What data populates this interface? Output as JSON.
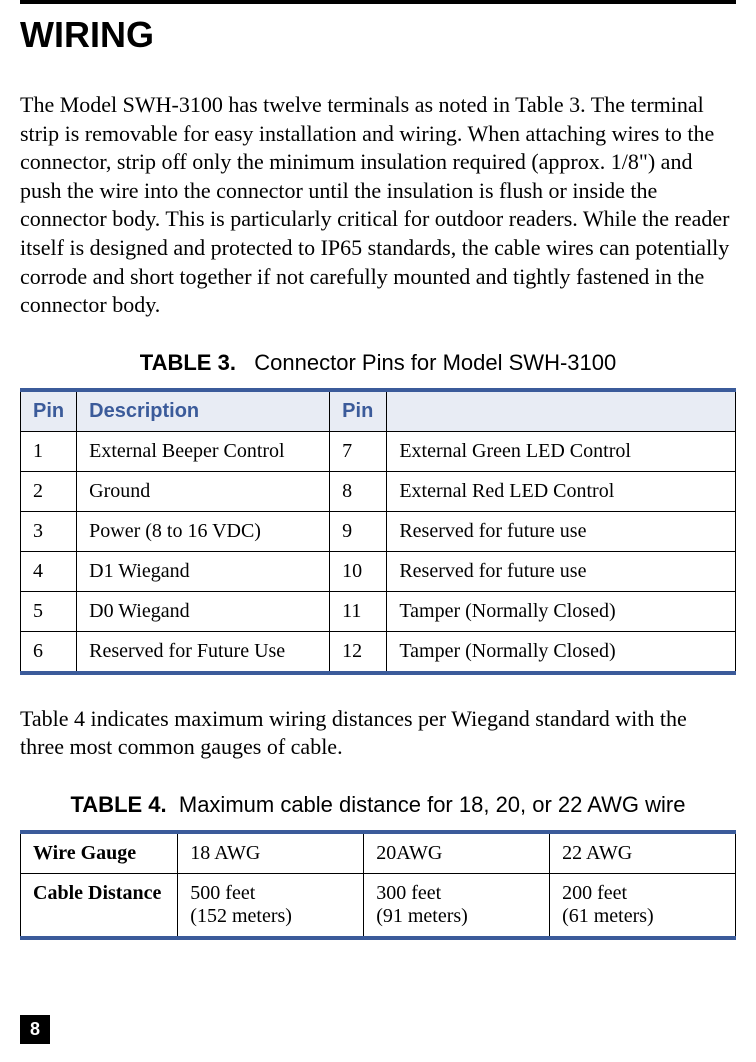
{
  "heading": "WIRING",
  "paragraph1": "The Model SWH-3100 has twelve terminals as noted in Table 3. The terminal strip is removable for easy installation and wiring. When attaching wires to the connector, strip off only the minimum insulation required (approx. 1/8\") and push the wire into the connector until the insulation is flush or inside the connector body. This is particularly critical for outdoor readers. While the reader itself is designed and protected to IP65 standards, the cable wires can potentially corrode and short together if not carefully mounted and tightly fastened in the connector body.",
  "table3": {
    "caption_bold": "TABLE 3.",
    "caption_text": "Connector Pins for Model SWH-3100",
    "headers": {
      "pin1": "Pin",
      "desc1": "Description",
      "pin2": "Pin",
      "desc2": ""
    },
    "rows": [
      {
        "pin1": "1",
        "desc1": "External Beeper Control",
        "pin2": "7",
        "desc2": "External Green LED Control"
      },
      {
        "pin1": "2",
        "desc1": "Ground",
        "pin2": "8",
        "desc2": "External Red LED Control"
      },
      {
        "pin1": "3",
        "desc1": "Power (8 to 16 VDC)",
        "pin2": "9",
        "desc2": "Reserved for future use"
      },
      {
        "pin1": "4",
        "desc1": "D1 Wiegand",
        "pin2": "10",
        "desc2": "Reserved for future use"
      },
      {
        "pin1": "5",
        "desc1": "D0 Wiegand",
        "pin2": "11",
        "desc2": "Tamper (Normally Closed)"
      },
      {
        "pin1": "6",
        "desc1": "Reserved for Future Use",
        "pin2": "12",
        "desc2": "Tamper (Normally Closed)"
      }
    ]
  },
  "paragraph2": "Table 4 indicates maximum wiring distances per Wiegand standard with the three most common gauges of cable.",
  "table4": {
    "caption_bold": "TABLE 4.",
    "caption_text": "Maximum cable distance for 18, 20, or 22 AWG wire",
    "row1": {
      "label": "Wire Gauge",
      "c1": "18 AWG",
      "c2": "20AWG",
      "c3": "22 AWG"
    },
    "row2": {
      "label": "Cable Distance",
      "c1a": "500 feet",
      "c1b": "(152 meters)",
      "c2a": "300 feet",
      "c2b": "(91 meters)",
      "c3a": "200 feet",
      "c3b": "(61 meters)"
    }
  },
  "pageNumber": "8",
  "colors": {
    "accent": "#3b5b9a",
    "headerBg": "#e8ecf4",
    "text": "#000000",
    "background": "#ffffff"
  }
}
